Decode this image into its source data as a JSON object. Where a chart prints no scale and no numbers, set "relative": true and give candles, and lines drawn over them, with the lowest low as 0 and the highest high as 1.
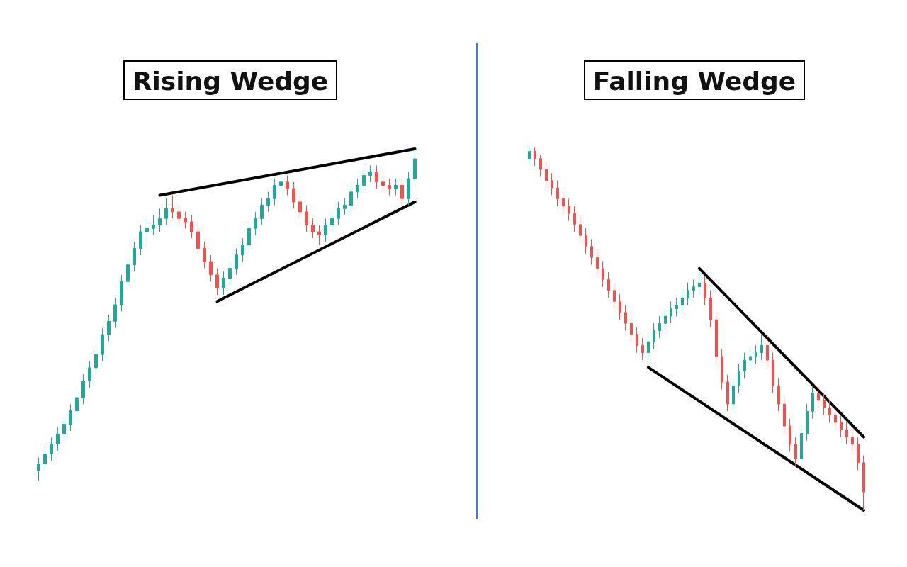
{
  "chart_data": [
    {
      "type": "candlestick",
      "title": "Rising Wedge",
      "relative": true,
      "marker": "none",
      "categories": [
        null,
        null,
        null,
        null,
        null,
        null,
        null,
        null,
        null,
        null,
        null,
        null,
        null,
        null,
        null,
        null,
        null,
        null,
        null,
        null,
        null,
        null,
        null,
        null,
        null,
        null,
        null,
        null,
        null,
        null,
        null,
        null,
        null,
        null,
        null,
        null,
        null,
        null,
        null,
        null,
        null,
        null,
        null,
        null,
        null,
        null,
        null,
        null,
        null,
        null,
        null,
        null,
        null,
        null,
        null,
        null,
        null,
        null,
        null,
        null
      ],
      "series": [
        {
          "type": "candlestick",
          "colors": [
            "#26a69a",
            "#26a69a",
            "#26a69a",
            "#26a69a",
            "#26a69a",
            "#26a69a",
            "#26a69a",
            "#26a69a",
            "#26a69a",
            "#26a69a",
            "#26a69a",
            "#26a69a",
            "#26a69a",
            "#26a69a",
            "#26a69a",
            "#26a69a",
            "#26a69a",
            "#26a69a",
            "#26a69a",
            "#26a69a",
            "#26a69a",
            "#ef5350",
            "#ef5350",
            "#ef5350",
            "#ef5350",
            "#ef5350",
            "#ef5350",
            "#ef5350",
            "#ef5350",
            "#26a69a",
            "#26a69a",
            "#26a69a",
            "#26a69a",
            "#26a69a",
            "#26a69a",
            "#26a69a",
            "#26a69a",
            "#26a69a",
            "#26a69a",
            "#ef5350",
            "#ef5350",
            "#ef5350",
            "#ef5350",
            "#ef5350",
            "#ef5350",
            "#26a69a",
            "#26a69a",
            "#26a69a",
            "#26a69a",
            "#26a69a",
            "#26a69a",
            "#26a69a",
            "#26a69a",
            "#ef5350",
            "#ef5350",
            "#ef5350",
            "#26a69a",
            "#ef5350",
            "#26a69a",
            "#26a69a"
          ],
          "ohlc": [
            [
              0.03,
              0.07,
              0,
              0.05
            ],
            [
              0.05,
              0.1,
              0.03,
              0.08
            ],
            [
              0.08,
              0.13,
              0.06,
              0.11
            ],
            [
              0.11,
              0.16,
              0.09,
              0.14
            ],
            [
              0.14,
              0.19,
              0.12,
              0.17
            ],
            [
              0.17,
              0.23,
              0.15,
              0.21
            ],
            [
              0.21,
              0.27,
              0.19,
              0.25
            ],
            [
              0.25,
              0.32,
              0.23,
              0.3
            ],
            [
              0.3,
              0.36,
              0.28,
              0.34
            ],
            [
              0.34,
              0.4,
              0.32,
              0.38
            ],
            [
              0.38,
              0.46,
              0.36,
              0.44
            ],
            [
              0.44,
              0.5,
              0.42,
              0.48
            ],
            [
              0.48,
              0.55,
              0.46,
              0.53
            ],
            [
              0.53,
              0.62,
              0.51,
              0.6
            ],
            [
              0.6,
              0.67,
              0.58,
              0.65
            ],
            [
              0.65,
              0.72,
              0.63,
              0.7
            ],
            [
              0.7,
              0.77,
              0.68,
              0.75
            ],
            [
              0.75,
              0.79,
              0.72,
              0.76
            ],
            [
              0.76,
              0.8,
              0.74,
              0.77
            ],
            [
              0.77,
              0.82,
              0.75,
              0.79
            ],
            [
              0.79,
              0.85,
              0.77,
              0.82
            ],
            [
              0.82,
              0.86,
              0.79,
              0.81
            ],
            [
              0.81,
              0.83,
              0.77,
              0.79
            ],
            [
              0.79,
              0.81,
              0.76,
              0.78
            ],
            [
              0.78,
              0.8,
              0.73,
              0.75
            ],
            [
              0.75,
              0.77,
              0.68,
              0.7
            ],
            [
              0.7,
              0.72,
              0.64,
              0.66
            ],
            [
              0.66,
              0.68,
              0.6,
              0.62
            ],
            [
              0.62,
              0.64,
              0.56,
              0.58
            ],
            [
              0.58,
              0.63,
              0.56,
              0.61
            ],
            [
              0.61,
              0.66,
              0.59,
              0.64
            ],
            [
              0.64,
              0.7,
              0.62,
              0.68
            ],
            [
              0.68,
              0.73,
              0.66,
              0.71
            ],
            [
              0.71,
              0.78,
              0.69,
              0.76
            ],
            [
              0.76,
              0.81,
              0.74,
              0.79
            ],
            [
              0.79,
              0.85,
              0.77,
              0.83
            ],
            [
              0.83,
              0.87,
              0.81,
              0.85
            ],
            [
              0.85,
              0.91,
              0.83,
              0.89
            ],
            [
              0.89,
              0.93,
              0.87,
              0.9
            ],
            [
              0.9,
              0.92,
              0.86,
              0.88
            ],
            [
              0.88,
              0.9,
              0.82,
              0.84
            ],
            [
              0.84,
              0.86,
              0.79,
              0.81
            ],
            [
              0.81,
              0.83,
              0.75,
              0.77
            ],
            [
              0.77,
              0.79,
              0.73,
              0.75
            ],
            [
              0.75,
              0.77,
              0.71,
              0.74
            ],
            [
              0.74,
              0.79,
              0.72,
              0.77
            ],
            [
              0.77,
              0.81,
              0.75,
              0.79
            ],
            [
              0.79,
              0.84,
              0.77,
              0.82
            ],
            [
              0.82,
              0.85,
              0.8,
              0.83
            ],
            [
              0.83,
              0.89,
              0.81,
              0.87
            ],
            [
              0.87,
              0.91,
              0.85,
              0.89
            ],
            [
              0.89,
              0.94,
              0.87,
              0.92
            ],
            [
              0.92,
              0.95,
              0.9,
              0.93
            ],
            [
              0.93,
              0.95,
              0.88,
              0.9
            ],
            [
              0.9,
              0.92,
              0.87,
              0.89
            ],
            [
              0.89,
              0.91,
              0.86,
              0.88
            ],
            [
              0.88,
              0.91,
              0.86,
              0.89
            ],
            [
              0.89,
              0.91,
              0.83,
              0.85
            ],
            [
              0.85,
              0.93,
              0.83,
              0.91
            ],
            [
              0.91,
              1,
              0.89,
              0.97
            ]
          ]
        },
        {
          "type": "line",
          "color": "#000000",
          "values": [
            null,
            null,
            null,
            null,
            null,
            null,
            null,
            null,
            null,
            null,
            null,
            null,
            null,
            null,
            null,
            null,
            null,
            null,
            null,
            0.86,
            null,
            null,
            null,
            null,
            null,
            null,
            null,
            null,
            null,
            null,
            null,
            null,
            null,
            null,
            null,
            null,
            null,
            null,
            null,
            null,
            null,
            null,
            null,
            null,
            null,
            null,
            null,
            null,
            null,
            null,
            null,
            null,
            null,
            null,
            null,
            null,
            null,
            null,
            null,
            1
          ]
        },
        {
          "type": "line",
          "color": "#000000",
          "values": [
            null,
            null,
            null,
            null,
            null,
            null,
            null,
            null,
            null,
            null,
            null,
            null,
            null,
            null,
            null,
            null,
            null,
            null,
            null,
            null,
            null,
            null,
            null,
            null,
            null,
            null,
            null,
            null,
            0.54,
            null,
            null,
            null,
            null,
            null,
            null,
            null,
            null,
            null,
            null,
            null,
            null,
            null,
            null,
            null,
            null,
            null,
            null,
            null,
            null,
            null,
            null,
            null,
            null,
            null,
            null,
            null,
            null,
            null,
            null,
            0.84
          ]
        }
      ]
    },
    {
      "type": "candlestick",
      "title": "Falling Wedge",
      "relative": true,
      "marker": "none",
      "categories": [
        null,
        null,
        null,
        null,
        null,
        null,
        null,
        null,
        null,
        null,
        null,
        null,
        null,
        null,
        null,
        null,
        null,
        null,
        null,
        null,
        null,
        null,
        null,
        null,
        null,
        null,
        null,
        null,
        null,
        null,
        null,
        null,
        null,
        null,
        null,
        null,
        null,
        null,
        null,
        null,
        null,
        null,
        null,
        null,
        null,
        null,
        null,
        null,
        null,
        null,
        null,
        null,
        null,
        null,
        null,
        null,
        null,
        null,
        null,
        null
      ],
      "series": [
        {
          "type": "candlestick",
          "colors": [
            "#26a69a",
            "#ef5350",
            "#ef5350",
            "#ef5350",
            "#ef5350",
            "#ef5350",
            "#ef5350",
            "#ef5350",
            "#ef5350",
            "#ef5350",
            "#ef5350",
            "#ef5350",
            "#ef5350",
            "#ef5350",
            "#ef5350",
            "#ef5350",
            "#ef5350",
            "#ef5350",
            "#ef5350",
            "#ef5350",
            "#ef5350",
            "#26a69a",
            "#26a69a",
            "#26a69a",
            "#26a69a",
            "#26a69a",
            "#26a69a",
            "#26a69a",
            "#26a69a",
            "#26a69a",
            "#26a69a",
            "#ef5350",
            "#ef5350",
            "#ef5350",
            "#ef5350",
            "#ef5350",
            "#26a69a",
            "#26a69a",
            "#26a69a",
            "#26a69a",
            "#26a69a",
            "#26a69a",
            "#ef5350",
            "#ef5350",
            "#ef5350",
            "#ef5350",
            "#ef5350",
            "#ef5350",
            "#26a69a",
            "#26a69a",
            "#26a69a",
            "#ef5350",
            "#ef5350",
            "#ef5350",
            "#ef5350",
            "#ef5350",
            "#ef5350",
            "#ef5350",
            "#ef5350",
            "#ef5350"
          ],
          "ohlc": [
            [
              0.96,
              1,
              0.94,
              0.98
            ],
            [
              0.98,
              0.99,
              0.94,
              0.96
            ],
            [
              0.96,
              0.97,
              0.91,
              0.93
            ],
            [
              0.93,
              0.95,
              0.88,
              0.9
            ],
            [
              0.9,
              0.92,
              0.86,
              0.88
            ],
            [
              0.88,
              0.9,
              0.83,
              0.85
            ],
            [
              0.85,
              0.87,
              0.81,
              0.83
            ],
            [
              0.83,
              0.85,
              0.79,
              0.81
            ],
            [
              0.81,
              0.83,
              0.76,
              0.78
            ],
            [
              0.78,
              0.8,
              0.73,
              0.75
            ],
            [
              0.75,
              0.77,
              0.7,
              0.72
            ],
            [
              0.72,
              0.74,
              0.67,
              0.69
            ],
            [
              0.69,
              0.71,
              0.64,
              0.66
            ],
            [
              0.66,
              0.68,
              0.61,
              0.63
            ],
            [
              0.63,
              0.65,
              0.58,
              0.6
            ],
            [
              0.6,
              0.62,
              0.55,
              0.57
            ],
            [
              0.57,
              0.59,
              0.52,
              0.54
            ],
            [
              0.54,
              0.56,
              0.49,
              0.51
            ],
            [
              0.51,
              0.53,
              0.46,
              0.48
            ],
            [
              0.48,
              0.5,
              0.43,
              0.45
            ],
            [
              0.45,
              0.47,
              0.41,
              0.43
            ],
            [
              0.43,
              0.48,
              0.41,
              0.46
            ],
            [
              0.46,
              0.51,
              0.44,
              0.49
            ],
            [
              0.49,
              0.53,
              0.47,
              0.51
            ],
            [
              0.51,
              0.55,
              0.49,
              0.53
            ],
            [
              0.53,
              0.57,
              0.51,
              0.55
            ],
            [
              0.55,
              0.58,
              0.53,
              0.56
            ],
            [
              0.56,
              0.6,
              0.54,
              0.58
            ],
            [
              0.58,
              0.62,
              0.56,
              0.6
            ],
            [
              0.6,
              0.63,
              0.58,
              0.61
            ],
            [
              0.61,
              0.65,
              0.59,
              0.62
            ],
            [
              0.62,
              0.64,
              0.56,
              0.58
            ],
            [
              0.58,
              0.6,
              0.5,
              0.52
            ],
            [
              0.52,
              0.54,
              0.4,
              0.42
            ],
            [
              0.42,
              0.44,
              0.33,
              0.35
            ],
            [
              0.35,
              0.37,
              0.27,
              0.29
            ],
            [
              0.29,
              0.36,
              0.27,
              0.34
            ],
            [
              0.34,
              0.4,
              0.32,
              0.38
            ],
            [
              0.38,
              0.43,
              0.36,
              0.41
            ],
            [
              0.41,
              0.44,
              0.39,
              0.42
            ],
            [
              0.42,
              0.45,
              0.4,
              0.43
            ],
            [
              0.43,
              0.48,
              0.41,
              0.45
            ],
            [
              0.45,
              0.47,
              0.39,
              0.41
            ],
            [
              0.41,
              0.43,
              0.32,
              0.34
            ],
            [
              0.34,
              0.36,
              0.27,
              0.29
            ],
            [
              0.29,
              0.31,
              0.21,
              0.23
            ],
            [
              0.23,
              0.25,
              0.16,
              0.18
            ],
            [
              0.18,
              0.2,
              0.12,
              0.14
            ],
            [
              0.14,
              0.23,
              0.12,
              0.21
            ],
            [
              0.21,
              0.29,
              0.19,
              0.27
            ],
            [
              0.27,
              0.34,
              0.25,
              0.32
            ],
            [
              0.32,
              0.34,
              0.28,
              0.3
            ],
            [
              0.3,
              0.32,
              0.26,
              0.28
            ],
            [
              0.28,
              0.3,
              0.24,
              0.26
            ],
            [
              0.26,
              0.28,
              0.22,
              0.24
            ],
            [
              0.24,
              0.26,
              0.2,
              0.22
            ],
            [
              0.22,
              0.24,
              0.18,
              0.2
            ],
            [
              0.2,
              0.22,
              0.16,
              0.18
            ],
            [
              0.18,
              0.2,
              0.11,
              0.13
            ],
            [
              0.13,
              0.15,
              0,
              0.05
            ]
          ]
        },
        {
          "type": "line",
          "color": "#000000",
          "values": [
            null,
            null,
            null,
            null,
            null,
            null,
            null,
            null,
            null,
            null,
            null,
            null,
            null,
            null,
            null,
            null,
            null,
            null,
            null,
            null,
            null,
            null,
            null,
            null,
            null,
            null,
            null,
            null,
            null,
            null,
            0.66,
            null,
            null,
            null,
            null,
            null,
            null,
            null,
            null,
            null,
            null,
            null,
            null,
            null,
            null,
            null,
            null,
            null,
            null,
            null,
            null,
            null,
            null,
            null,
            null,
            null,
            null,
            null,
            null,
            0.2
          ]
        },
        {
          "type": "line",
          "color": "#000000",
          "values": [
            null,
            null,
            null,
            null,
            null,
            null,
            null,
            null,
            null,
            null,
            null,
            null,
            null,
            null,
            null,
            null,
            null,
            null,
            null,
            null,
            null,
            0.39,
            null,
            null,
            null,
            null,
            null,
            null,
            null,
            null,
            null,
            null,
            null,
            null,
            null,
            null,
            null,
            null,
            null,
            null,
            null,
            null,
            null,
            null,
            null,
            null,
            null,
            null,
            null,
            null,
            null,
            null,
            null,
            null,
            null,
            null,
            null,
            null,
            null,
            0
          ]
        }
      ]
    }
  ]
}
